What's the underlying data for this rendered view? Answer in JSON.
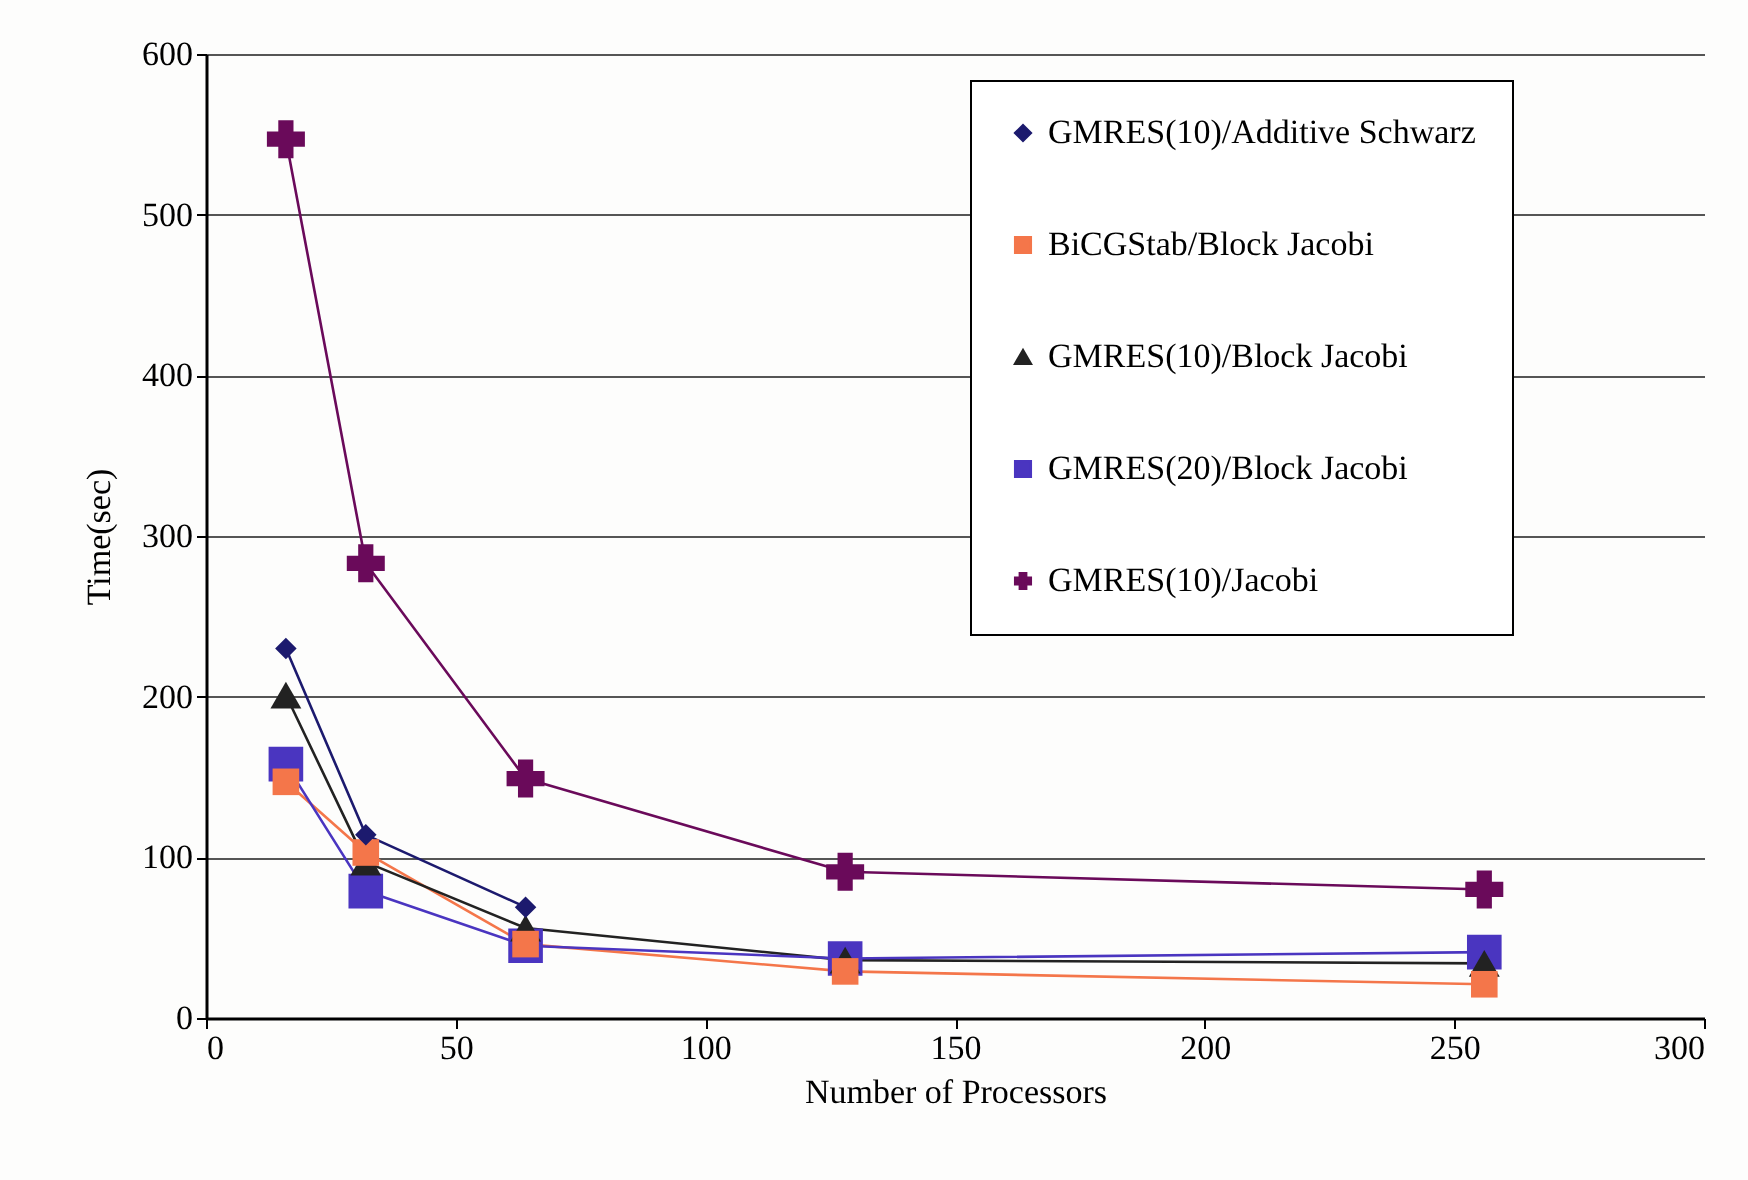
{
  "chart_data": {
    "type": "line",
    "xlabel": "Number of Processors",
    "ylabel": "Time(sec)",
    "xlim": [
      0,
      300
    ],
    "xticks": [
      0,
      50,
      100,
      150,
      200,
      250,
      300
    ],
    "ylim": [
      0,
      600
    ],
    "yticks": [
      0,
      100,
      200,
      300,
      400,
      500,
      600
    ],
    "grid": "y",
    "legend": "top right",
    "line_style": "solid",
    "series": [
      {
        "name": "GMRES(10)/Additive Schwarz",
        "color": "#1c1a6e",
        "marker": "diamond",
        "x": [
          16,
          32,
          64
        ],
        "values": [
          230,
          114,
          69
        ]
      },
      {
        "name": "BiCGStab/Block Jacobi",
        "color": "#f4764a",
        "marker": "square",
        "x": [
          16,
          32,
          64,
          128,
          256
        ],
        "values": [
          147,
          103,
          46,
          29,
          21
        ]
      },
      {
        "name": "GMRES(10)/Block Jacobi",
        "color": "#222222",
        "marker": "triangle",
        "x": [
          16,
          32,
          64,
          128,
          256
        ],
        "values": [
          201,
          97,
          56,
          36,
          34
        ]
      },
      {
        "name": "GMRES(20)/Block Jacobi",
        "color": "#4a35c0",
        "marker": "square",
        "x": [
          16,
          32,
          64,
          128,
          256
        ],
        "values": [
          158,
          79,
          45,
          37,
          41
        ]
      },
      {
        "name": "GMRES(10)/Jacobi",
        "color": "#6a0a5a",
        "marker": "cross",
        "x": [
          16,
          32,
          64,
          128,
          256
        ],
        "values": [
          547,
          283,
          149,
          91,
          80
        ]
      }
    ]
  }
}
